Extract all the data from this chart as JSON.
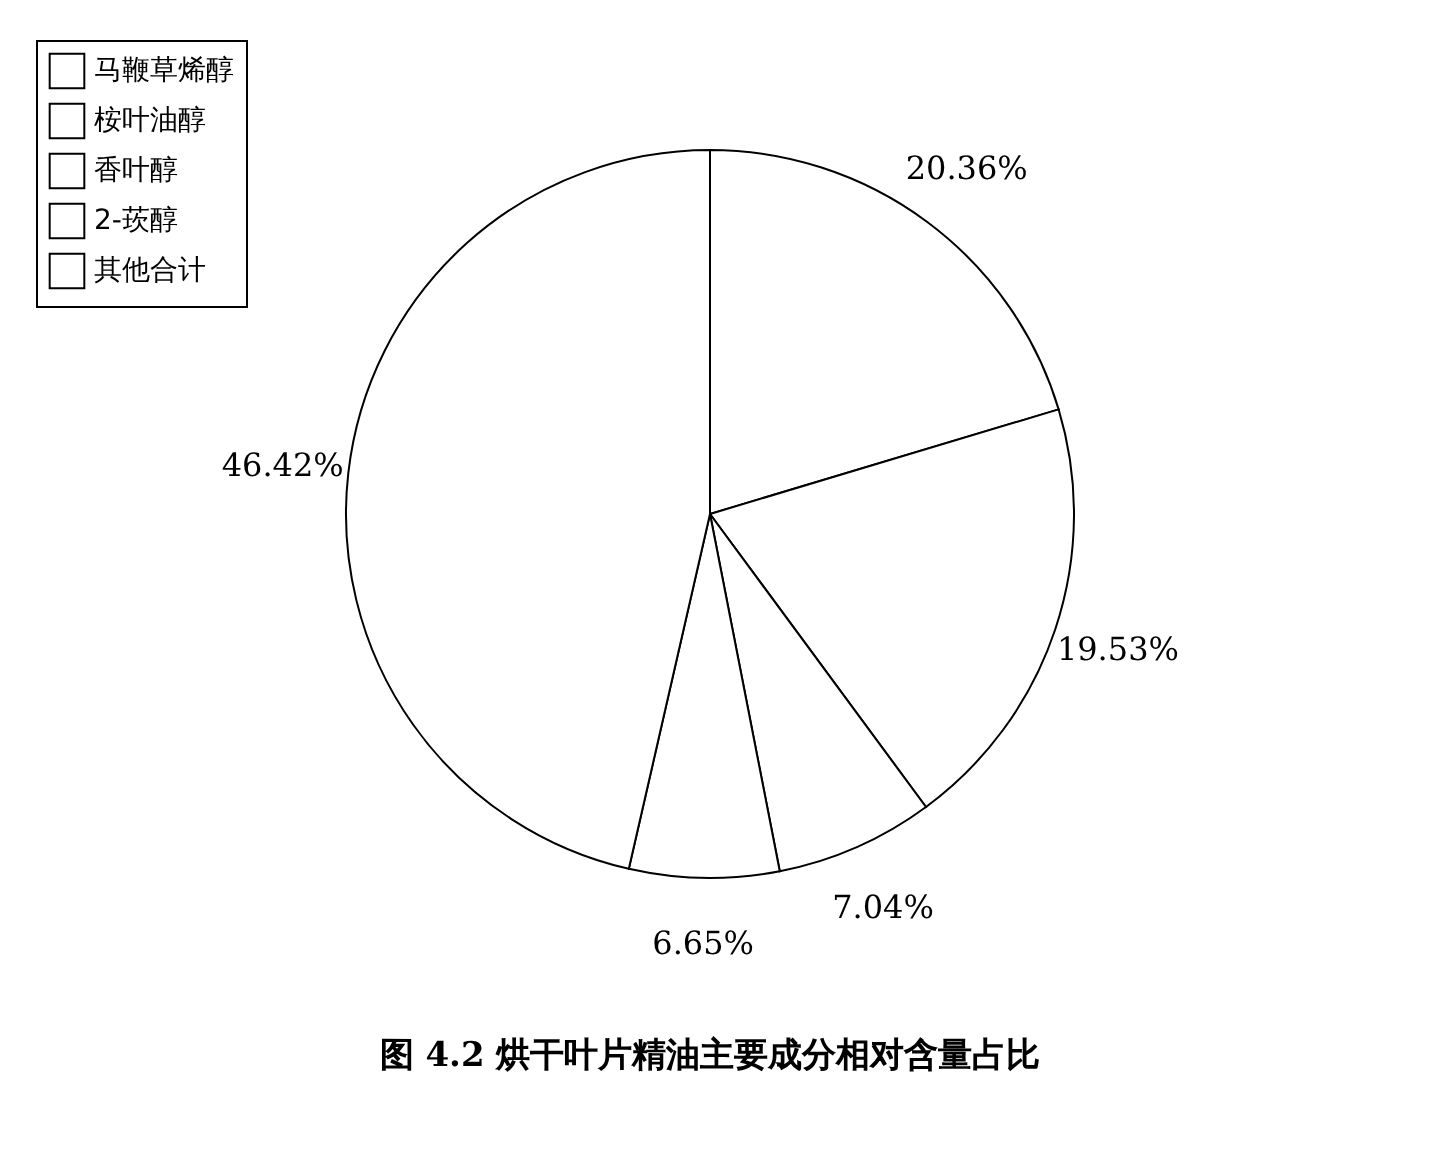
{
  "chart_data": {
    "type": "pie",
    "title": "图 4.2  烘干叶片精油主要成分相对含量占比",
    "categories": [
      "马鞭草烯醇",
      "桉叶油醇",
      "香叶醇",
      "2-莰醇",
      "其他合计"
    ],
    "values": [
      20.36,
      19.53,
      7.04,
      6.65,
      46.42
    ],
    "value_labels": [
      "20.36%",
      "19.53%",
      "7.04%",
      "6.65%",
      "46.42%"
    ],
    "colors": [
      "#ffffff",
      "#ffffff",
      "#ffffff",
      "#ffffff",
      "#ffffff"
    ],
    "legend": "top left"
  }
}
